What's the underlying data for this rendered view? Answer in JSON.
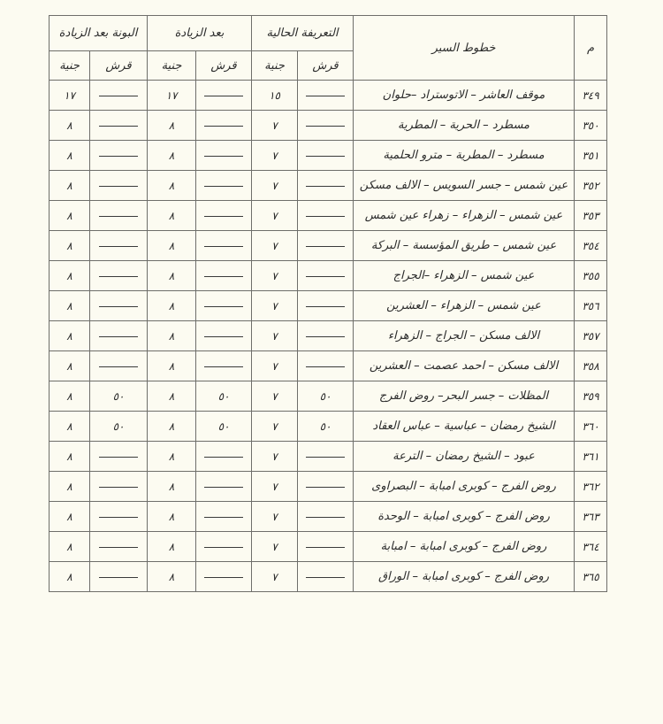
{
  "headers": {
    "index": "م",
    "route": "خطوط السير",
    "current_fare": "التعريفة الحالية",
    "after_increase": "بعد الزيادة",
    "pass_after_increase": "البونة بعد الزيادة",
    "piaster": "قرش",
    "pound": "جنية"
  },
  "rows": [
    {
      "no": "٣٤٩",
      "route": "موقف العاشر – الاتوستراد –حلوان",
      "cur_q": "",
      "cur_p": "١٥",
      "inc_q": "",
      "inc_p": "١٧",
      "pass_q": "",
      "pass_p": "١٧"
    },
    {
      "no": "٣٥٠",
      "route": "مسطرد – الحرية – المطرية",
      "cur_q": "",
      "cur_p": "٧",
      "inc_q": "",
      "inc_p": "٨",
      "pass_q": "",
      "pass_p": "٨"
    },
    {
      "no": "٣٥١",
      "route": "مسطرد – المطرية – مترو الحلمية",
      "cur_q": "",
      "cur_p": "٧",
      "inc_q": "",
      "inc_p": "٨",
      "pass_q": "",
      "pass_p": "٨"
    },
    {
      "no": "٣٥٢",
      "route": "عين شمس – جسر السويس – الالف مسكن",
      "cur_q": "",
      "cur_p": "٧",
      "inc_q": "",
      "inc_p": "٨",
      "pass_q": "",
      "pass_p": "٨"
    },
    {
      "no": "٣٥٣",
      "route": "عين شمس – الزهراء – زهراء عين شمس",
      "cur_q": "",
      "cur_p": "٧",
      "inc_q": "",
      "inc_p": "٨",
      "pass_q": "",
      "pass_p": "٨"
    },
    {
      "no": "٣٥٤",
      "route": "عين شمس – طريق المؤسسة – البركة",
      "cur_q": "",
      "cur_p": "٧",
      "inc_q": "",
      "inc_p": "٨",
      "pass_q": "",
      "pass_p": "٨"
    },
    {
      "no": "٣٥٥",
      "route": "عين شمس – الزهراء –الجراج",
      "cur_q": "",
      "cur_p": "٧",
      "inc_q": "",
      "inc_p": "٨",
      "pass_q": "",
      "pass_p": "٨"
    },
    {
      "no": "٣٥٦",
      "route": "عين شمس – الزهراء – العشرين",
      "cur_q": "",
      "cur_p": "٧",
      "inc_q": "",
      "inc_p": "٨",
      "pass_q": "",
      "pass_p": "٨"
    },
    {
      "no": "٣٥٧",
      "route": "الالف مسكن – الجراج – الزهراء",
      "cur_q": "",
      "cur_p": "٧",
      "inc_q": "",
      "inc_p": "٨",
      "pass_q": "",
      "pass_p": "٨"
    },
    {
      "no": "٣٥٨",
      "route": "الالف مسكن – احمد عصمت – العشرين",
      "cur_q": "",
      "cur_p": "٧",
      "inc_q": "",
      "inc_p": "٨",
      "pass_q": "",
      "pass_p": "٨"
    },
    {
      "no": "٣٥٩",
      "route": "المظلات – جسر البحر– روض الفرج",
      "cur_q": "٥٠",
      "cur_p": "٧",
      "inc_q": "٥٠",
      "inc_p": "٨",
      "pass_q": "٥٠",
      "pass_p": "٨"
    },
    {
      "no": "٣٦٠",
      "route": "الشيخ رمضان – عباسية – عباس العقاد",
      "cur_q": "٥٠",
      "cur_p": "٧",
      "inc_q": "٥٠",
      "inc_p": "٨",
      "pass_q": "٥٠",
      "pass_p": "٨"
    },
    {
      "no": "٣٦١",
      "route": "عبود – الشيخ رمضان – الترعة",
      "cur_q": "",
      "cur_p": "٧",
      "inc_q": "",
      "inc_p": "٨",
      "pass_q": "",
      "pass_p": "٨"
    },
    {
      "no": "٣٦٢",
      "route": "روض الفرج – كوبرى امبابة – البصراوى",
      "cur_q": "",
      "cur_p": "٧",
      "inc_q": "",
      "inc_p": "٨",
      "pass_q": "",
      "pass_p": "٨"
    },
    {
      "no": "٣٦٣",
      "route": "روض الفرج – كوبرى امبابة – الوحدة",
      "cur_q": "",
      "cur_p": "٧",
      "inc_q": "",
      "inc_p": "٨",
      "pass_q": "",
      "pass_p": "٨"
    },
    {
      "no": "٣٦٤",
      "route": "روض الفرج – كوبرى امبابة – امبابة",
      "cur_q": "",
      "cur_p": "٧",
      "inc_q": "",
      "inc_p": "٨",
      "pass_q": "",
      "pass_p": "٨"
    },
    {
      "no": "٣٦٥",
      "route": "روض الفرج – كوبرى امبابة – الوراق",
      "cur_q": "",
      "cur_p": "٧",
      "inc_q": "",
      "inc_p": "٨",
      "pass_q": "",
      "pass_p": "٨"
    }
  ]
}
